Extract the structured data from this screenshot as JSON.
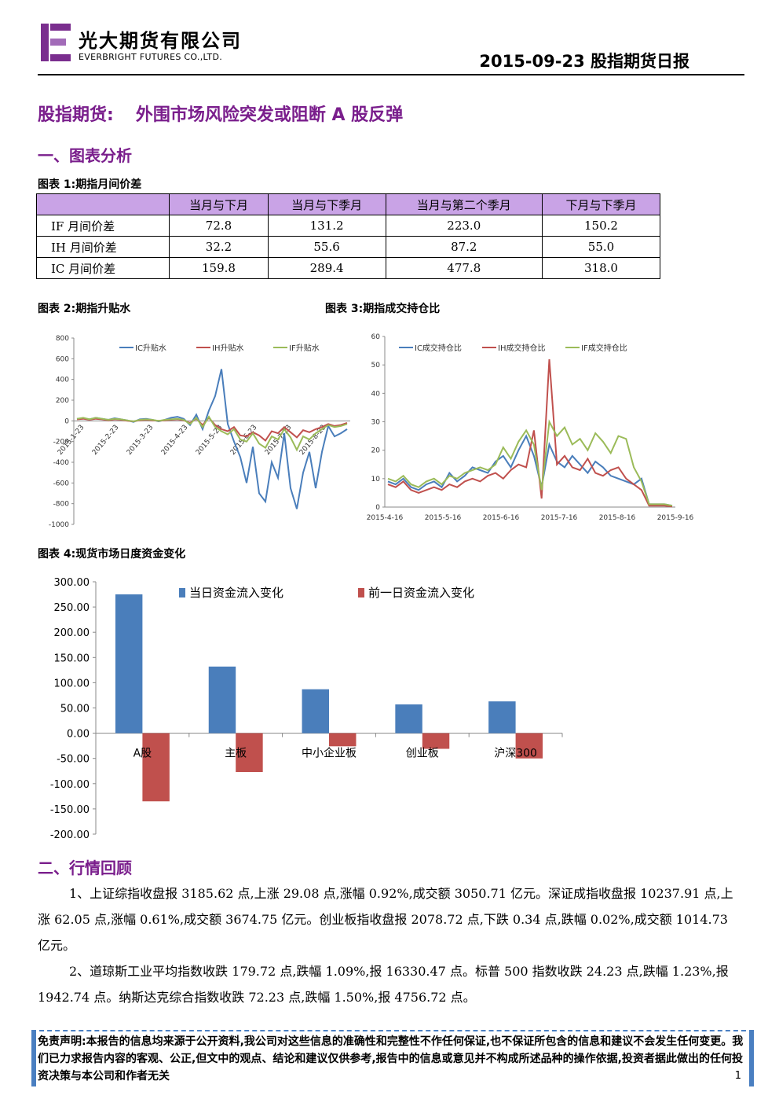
{
  "header": {
    "company_cn": "光大期货有限公司",
    "company_en": "EVERBRIGHT FUTURES CO.,LTD.",
    "report_title": "2015-09-23 股指期货日报"
  },
  "main_title": {
    "prefix": "股指期货:",
    "headline": "外围市场风险突发或阻断 A 股反弹"
  },
  "section1": {
    "title": "一、图表分析"
  },
  "table1": {
    "caption": "图表 1:期指月间价差",
    "headers": [
      "",
      "当月与下月",
      "当月与下季月",
      "当月与第二个季月",
      "下月与下季月"
    ],
    "rows": [
      [
        "IF 月间价差",
        "72.8",
        "131.2",
        "223.0",
        "150.2"
      ],
      [
        "IH 月间价差",
        "32.2",
        "55.6",
        "87.2",
        "55.0"
      ],
      [
        "IC 月间价差",
        "159.8",
        "289.4",
        "477.8",
        "318.0"
      ]
    ]
  },
  "chart2": {
    "caption": "图表 2:期指升贴水"
  },
  "chart3": {
    "caption": "图表 3:期指成交持仓比"
  },
  "chart4": {
    "caption": "图表 4:现货市场日度资金变化"
  },
  "chart_data": [
    {
      "type": "line",
      "title": "",
      "ylim": [
        -1000,
        800
      ],
      "yticks": [
        800,
        600,
        400,
        200,
        0,
        -200,
        -400,
        -600,
        -800,
        -1000
      ],
      "xticks": [
        "2015-1-23",
        "2015-2-23",
        "2015-3-23",
        "2015-4-23",
        "2015-5-23",
        "2015-6-23",
        "2015-7-23",
        "2015-8-23"
      ],
      "legend": "top",
      "series": [
        {
          "name": "IC升贴水",
          "color": "#4a7ebb",
          "values": [
            20,
            25,
            15,
            30,
            20,
            10,
            25,
            15,
            5,
            -10,
            15,
            20,
            10,
            -5,
            10,
            30,
            40,
            20,
            -40,
            60,
            -80,
            100,
            240,
            500,
            -30,
            -200,
            -350,
            -600,
            -250,
            -700,
            -780,
            -400,
            -550,
            -120,
            -650,
            -850,
            -500,
            -300,
            -650,
            -300,
            -50,
            -150,
            -120,
            -80
          ]
        },
        {
          "name": "IH升贴水",
          "color": "#c0504d",
          "values": [
            15,
            20,
            10,
            20,
            15,
            5,
            15,
            10,
            0,
            -5,
            5,
            10,
            5,
            0,
            5,
            10,
            15,
            5,
            -20,
            20,
            -40,
            30,
            -40,
            -80,
            -100,
            -60,
            -140,
            -150,
            -110,
            -140,
            -190,
            -100,
            -120,
            -60,
            -110,
            -160,
            -90,
            -110,
            -80,
            -60,
            -30,
            -50,
            -40,
            -20
          ]
        },
        {
          "name": "IF升贴水",
          "color": "#9bbb59",
          "values": [
            20,
            30,
            15,
            30,
            20,
            10,
            20,
            15,
            5,
            -5,
            10,
            15,
            10,
            0,
            10,
            15,
            20,
            10,
            -30,
            30,
            -60,
            40,
            -60,
            -100,
            -130,
            -80,
            -180,
            -200,
            -120,
            -220,
            -260,
            -150,
            -180,
            -80,
            -160,
            -280,
            -150,
            -180,
            -120,
            -80,
            -40,
            -60,
            -50,
            -30
          ]
        }
      ]
    },
    {
      "type": "line",
      "title": "",
      "ylim": [
        0,
        60
      ],
      "yticks": [
        60,
        50,
        40,
        30,
        20,
        10,
        0
      ],
      "xticks": [
        "2015-4-16",
        "2015-5-16",
        "2015-6-16",
        "2015-7-16",
        "2015-8-16",
        "2015-9-16"
      ],
      "legend": "top",
      "series": [
        {
          "name": "IC成交持仓比",
          "color": "#4a7ebb",
          "values": [
            9,
            8,
            10,
            7,
            6,
            8,
            9,
            7,
            12,
            9,
            11,
            14,
            13,
            12,
            16,
            18,
            14,
            20,
            25,
            18,
            7,
            22,
            16,
            14,
            18,
            15,
            12,
            16,
            14,
            11,
            10,
            9,
            8,
            10,
            1,
            1,
            1,
            0.5
          ]
        },
        {
          "name": "IH成交持仓比",
          "color": "#c0504d",
          "values": [
            8,
            7,
            9,
            6,
            5,
            6,
            7,
            6,
            8,
            7,
            9,
            10,
            9,
            11,
            12,
            10,
            13,
            15,
            14,
            27,
            3,
            52,
            15,
            18,
            14,
            13,
            17,
            12,
            11,
            13,
            14,
            10,
            8,
            6,
            0.5,
            0.5,
            0.5,
            0.2
          ]
        },
        {
          "name": "IF成交持仓比",
          "color": "#9bbb59",
          "values": [
            10,
            9,
            11,
            8,
            7,
            9,
            10,
            8,
            11,
            10,
            12,
            13,
            14,
            13,
            15,
            21,
            17,
            23,
            27,
            22,
            6,
            30,
            25,
            28,
            22,
            24,
            20,
            26,
            23,
            19,
            25,
            24,
            14,
            9,
            1,
            1,
            1,
            0.5
          ]
        }
      ]
    },
    {
      "type": "bar",
      "title": "",
      "categories": [
        "A股",
        "主板",
        "中小企业板",
        "创业板",
        "沪深300"
      ],
      "ylim": [
        -200,
        300
      ],
      "yticks": [
        "300.00",
        "250.00",
        "200.00",
        "150.00",
        "100.00",
        "50.00",
        "0.00",
        "-50.00",
        "-100.00",
        "-150.00",
        "-200.00"
      ],
      "legend": "top",
      "series": [
        {
          "name": "当日资金流入变化",
          "color": "#4a7ebb",
          "values": [
            275,
            132,
            87,
            57,
            63
          ]
        },
        {
          "name": "前一日资金流入变化",
          "color": "#c0504d",
          "values": [
            -135,
            -77,
            -26,
            -31,
            -50
          ]
        }
      ]
    }
  ],
  "section2": {
    "title": "二、行情回顾",
    "para1": "1、上证综指收盘报 3185.62 点,上涨 29.08 点,涨幅 0.92%,成交额 3050.71 亿元。深证成指收盘报 10237.91 点,上涨 62.05 点,涨幅 0.61%,成交额 3674.75 亿元。创业板指收盘报 2078.72 点,下跌 0.34 点,跌幅 0.02%,成交额 1014.73 亿元。",
    "para2": "2、道琼斯工业平均指数收跌 179.72 点,跌幅 1.09%,报 16330.47 点。标普 500 指数收跌 24.23 点,跌幅 1.23%,报 1942.74 点。纳斯达克综合指数收跌 72.23 点,跌幅 1.50%,报 4756.72 点。"
  },
  "footer": {
    "disclaimer": "免责声明:本报告的信息均来源于公开资料,我公司对这些信息的准确性和完整性不作任何保证,也不保证所包含的信息和建议不会发生任何变更。我们已力求报告内容的客观、公正,但文中的观点、结论和建议仅供参考,报告中的信息或意见并不构成所述品种的操作依据,投资者据此做出的任何投资决策与本公司和作者无关",
    "page_number": "1"
  }
}
